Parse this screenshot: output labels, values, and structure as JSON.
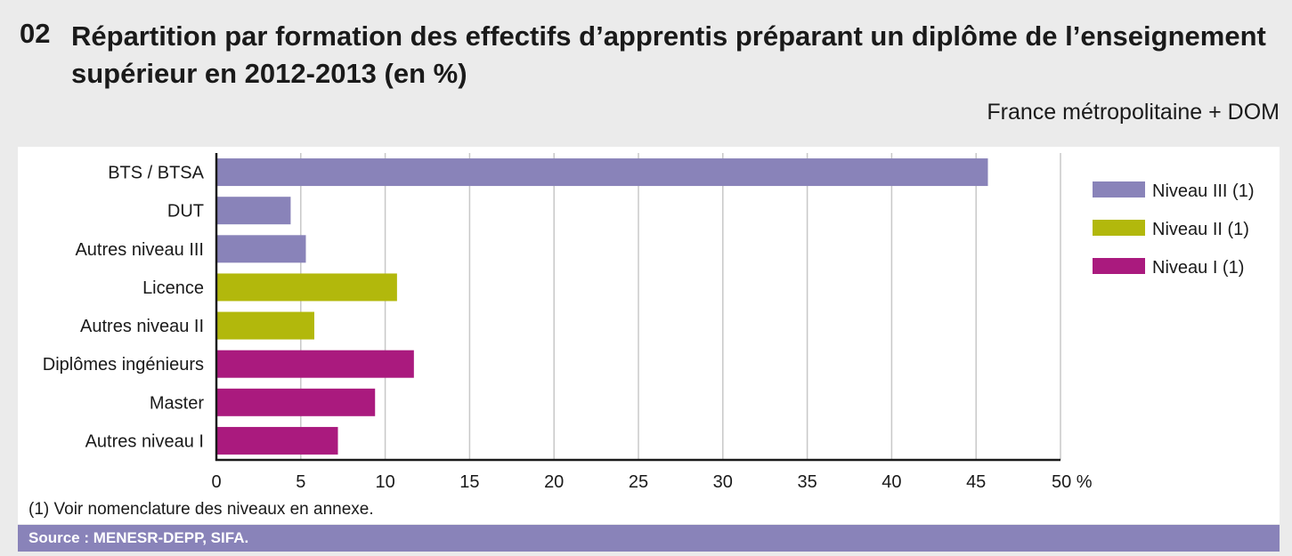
{
  "header": {
    "number": "02",
    "title": "Répartition par formation des effectifs d’apprentis préparant un diplôme de l’enseignement supérieur en 2012-2013 (en %)",
    "subtitle": "France métropolitaine + DOM"
  },
  "footnote": "(1) Voir nomenclature des niveaux en annexe.",
  "source": "Source : MENESR-DEPP, SIFA.",
  "chart_data": {
    "type": "bar",
    "orientation": "horizontal",
    "title": "Répartition par formation des effectifs d’apprentis préparant un diplôme de l’enseignement supérieur en 2012-2013 (en %)",
    "categories": [
      "BTS / BTSA",
      "DUT",
      "Autres niveau III",
      "Licence",
      "Autres niveau II",
      "Diplômes  ingénieurs",
      "Master",
      "Autres niveau I"
    ],
    "values": [
      45.7,
      4.4,
      5.3,
      10.7,
      5.8,
      11.7,
      9.4,
      7.2
    ],
    "groups": [
      0,
      0,
      0,
      1,
      1,
      2,
      2,
      2
    ],
    "legend": [
      {
        "label": "Niveau III (1)",
        "color": "#8983b9"
      },
      {
        "label": "Niveau II (1)",
        "color": "#b2b80c"
      },
      {
        "label": "Niveau I (1)",
        "color": "#aa1a7e"
      }
    ],
    "legend_position": "right",
    "xlim": [
      0,
      50
    ],
    "xticks": [
      "0",
      "5",
      "10",
      "15",
      "20",
      "25",
      "30",
      "35",
      "40",
      "45",
      "50 %"
    ],
    "grid": true,
    "xlabel": "",
    "ylabel": ""
  }
}
